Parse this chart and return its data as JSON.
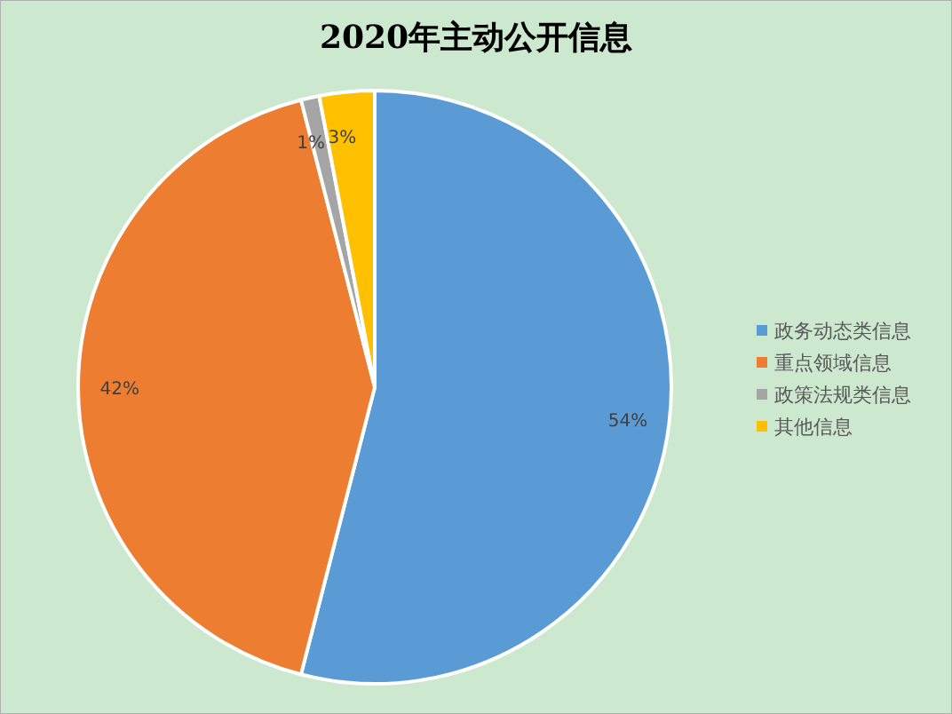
{
  "chart_data": {
    "type": "pie",
    "title": "2020年主动公开信息",
    "categories": [
      "政务动态类信息",
      "重点领域信息",
      "政策法规类信息",
      "其他信息"
    ],
    "values": [
      54,
      42,
      1,
      3
    ],
    "colors": [
      "#5b9bd5",
      "#ed7d31",
      "#a5a5a5",
      "#ffc000"
    ],
    "value_labels": [
      "54%",
      "42%",
      "1%",
      "3%"
    ],
    "legend": "right"
  }
}
